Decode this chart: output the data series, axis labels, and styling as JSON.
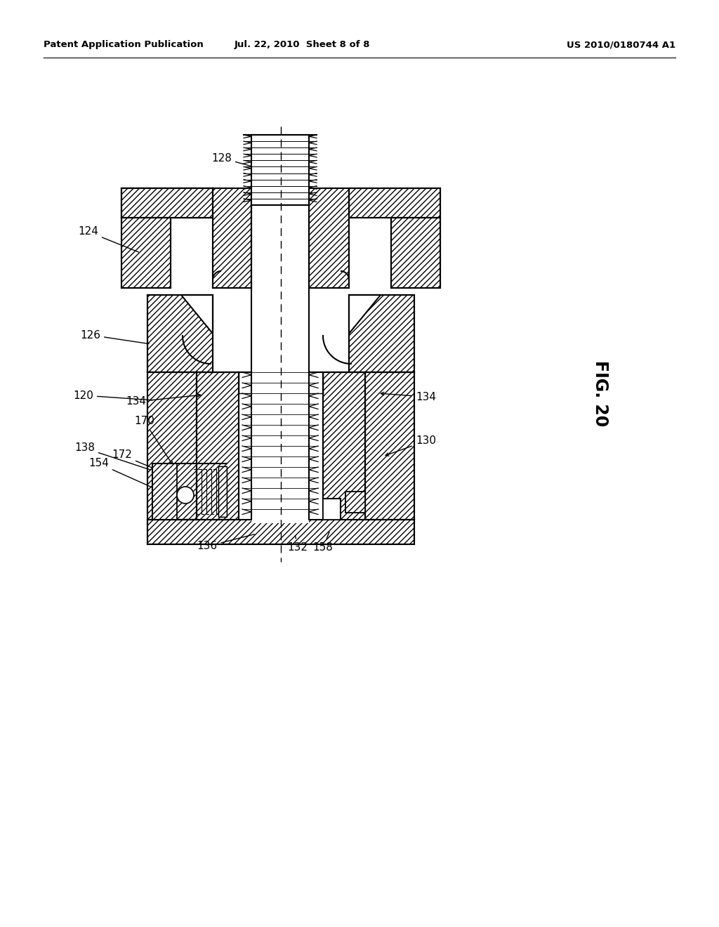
{
  "background_color": "#ffffff",
  "header_left": "Patent Application Publication",
  "header_center": "Jul. 22, 2010  Sheet 8 of 8",
  "header_right": "US 2010/0180744 A1",
  "fig_label": "FIG. 20",
  "lc": "#000000"
}
